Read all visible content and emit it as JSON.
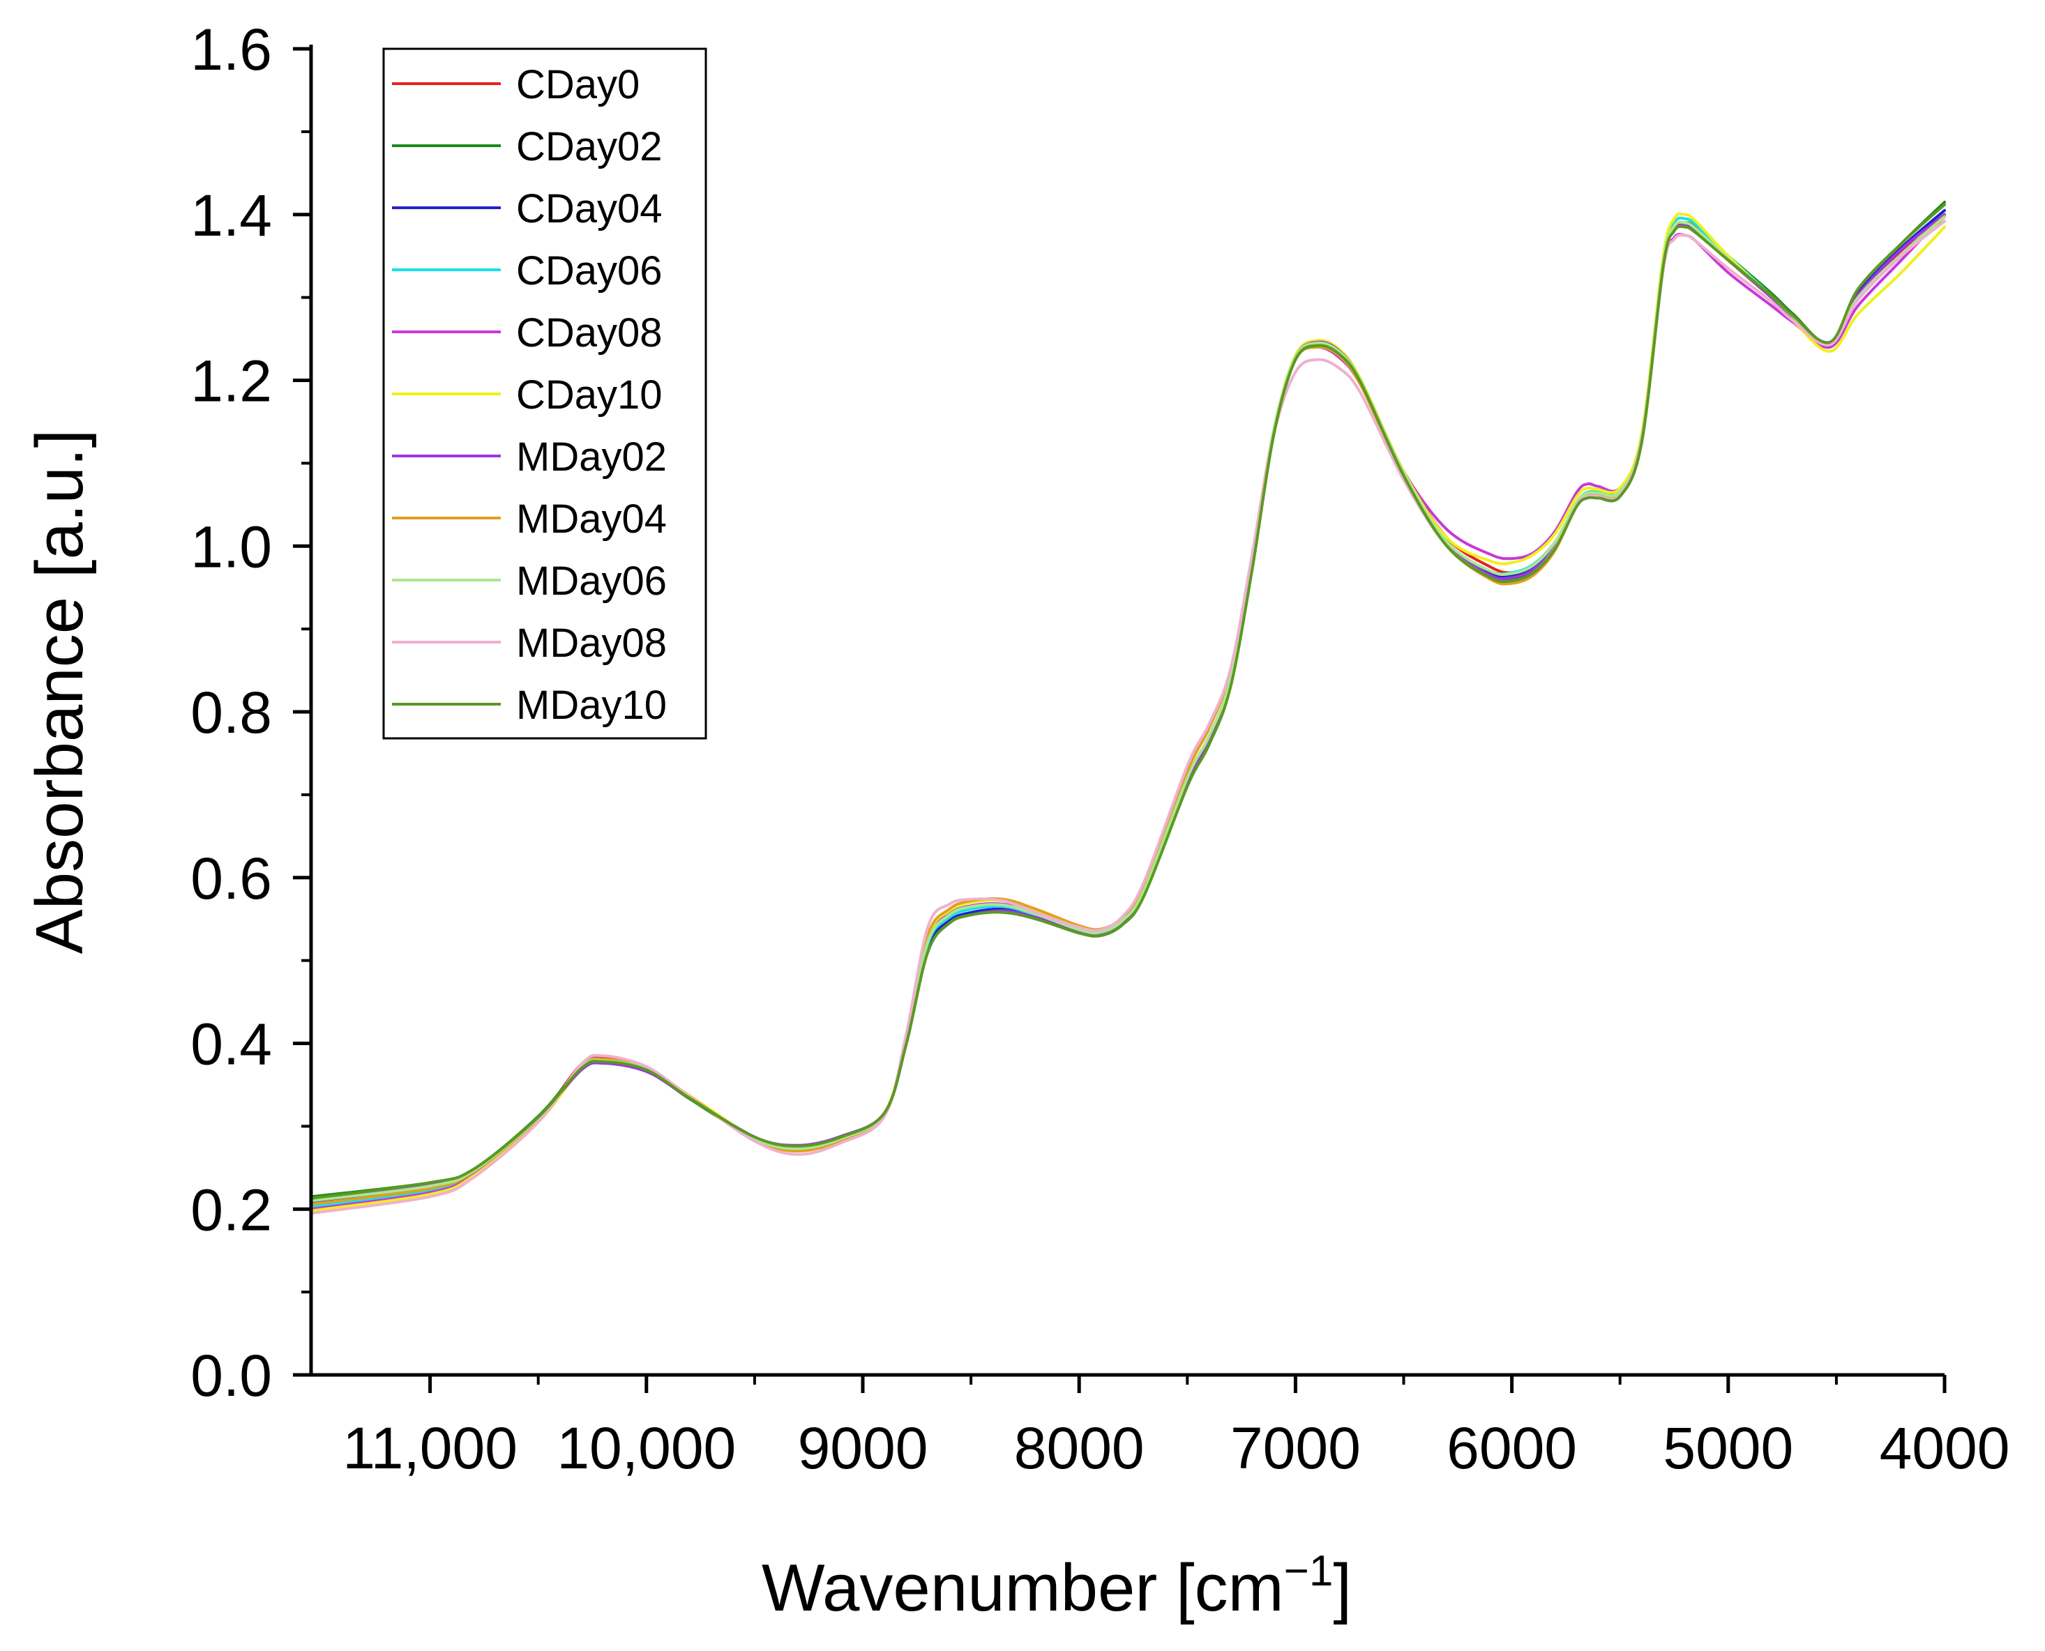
{
  "chart_data": {
    "type": "line",
    "title": "",
    "xlabel_text": "Wavenumber [cm",
    "xlabel_sup": "−1",
    "xlabel_close": "]",
    "ylabel": "Absorbance [a.u.]",
    "xlim": [
      11550,
      4000
    ],
    "ylim": [
      0.0,
      1.6
    ],
    "x_reversed": true,
    "xticks": [
      11000,
      10000,
      9000,
      8000,
      7000,
      6000,
      5000,
      4000
    ],
    "xtick_labels": [
      "11,000",
      "10,000",
      "9000",
      "8000",
      "7000",
      "6000",
      "5000",
      "4000"
    ],
    "x_minor_ticks": [
      10500,
      9500,
      8500,
      7500,
      6500,
      5500,
      4500
    ],
    "yticks": [
      0.0,
      0.2,
      0.4,
      0.6,
      0.8,
      1.0,
      1.2,
      1.4,
      1.6
    ],
    "ytick_labels": [
      "0.0",
      "0.2",
      "0.4",
      "0.6",
      "0.8",
      "1.0",
      "1.2",
      "1.4",
      "1.6"
    ],
    "y_minor_ticks": [
      0.1,
      0.3,
      0.5,
      0.7,
      0.9,
      1.1,
      1.3,
      1.5
    ],
    "grid": false,
    "legend_position": "top-left",
    "x": [
      11550,
      11000,
      10800,
      10500,
      10300,
      10200,
      10000,
      9800,
      9500,
      9300,
      9100,
      8900,
      8800,
      8700,
      8600,
      8500,
      8350,
      8200,
      8000,
      7900,
      7800,
      7700,
      7500,
      7400,
      7300,
      7200,
      7100,
      7000,
      6900,
      6800,
      6700,
      6500,
      6300,
      6100,
      6000,
      5900,
      5800,
      5700,
      5650,
      5600,
      5500,
      5400,
      5300,
      5250,
      5200,
      5150,
      5000,
      4800,
      4700,
      4530,
      4400,
      4200,
      4000
    ],
    "series": [
      {
        "name": "CDay0",
        "color": "#e8221f",
        "values": [
          0.205,
          0.224,
          0.245,
          0.31,
          0.375,
          0.382,
          0.37,
          0.335,
          0.285,
          0.272,
          0.285,
          0.315,
          0.4,
          0.52,
          0.555,
          0.565,
          0.565,
          0.555,
          0.538,
          0.535,
          0.548,
          0.585,
          0.72,
          0.77,
          0.84,
          0.98,
          1.14,
          1.228,
          1.245,
          1.235,
          1.2,
          1.09,
          1.01,
          0.975,
          0.968,
          0.978,
          1.005,
          1.05,
          1.062,
          1.065,
          1.068,
          1.13,
          1.34,
          1.385,
          1.39,
          1.382,
          1.345,
          1.3,
          1.275,
          1.245,
          1.3,
          1.355,
          1.392
        ]
      },
      {
        "name": "CDay02",
        "color": "#1b8a1b",
        "values": [
          0.215,
          0.232,
          0.248,
          0.312,
          0.372,
          0.379,
          0.368,
          0.333,
          0.286,
          0.276,
          0.287,
          0.316,
          0.398,
          0.51,
          0.545,
          0.555,
          0.56,
          0.552,
          0.535,
          0.532,
          0.545,
          0.58,
          0.712,
          0.762,
          0.832,
          0.975,
          1.135,
          1.225,
          1.243,
          1.233,
          1.198,
          1.085,
          1.0,
          0.963,
          0.96,
          0.97,
          0.998,
          1.05,
          1.06,
          1.058,
          1.06,
          1.125,
          1.34,
          1.385,
          1.39,
          1.385,
          1.35,
          1.305,
          1.28,
          1.245,
          1.31,
          1.365,
          1.415
        ]
      },
      {
        "name": "CDay04",
        "color": "#2222cc",
        "values": [
          0.208,
          0.228,
          0.246,
          0.31,
          0.37,
          0.378,
          0.368,
          0.335,
          0.287,
          0.275,
          0.286,
          0.315,
          0.4,
          0.515,
          0.548,
          0.558,
          0.562,
          0.553,
          0.536,
          0.533,
          0.546,
          0.582,
          0.715,
          0.765,
          0.835,
          0.978,
          1.138,
          1.228,
          1.246,
          1.236,
          1.2,
          1.088,
          1.005,
          0.968,
          0.965,
          0.975,
          1.003,
          1.052,
          1.063,
          1.063,
          1.065,
          1.128,
          1.338,
          1.382,
          1.388,
          1.38,
          1.345,
          1.3,
          1.276,
          1.245,
          1.305,
          1.36,
          1.405
        ]
      },
      {
        "name": "CDay06",
        "color": "#19e0e8",
        "values": [
          0.203,
          0.222,
          0.243,
          0.308,
          0.372,
          0.38,
          0.37,
          0.336,
          0.286,
          0.274,
          0.286,
          0.315,
          0.402,
          0.52,
          0.552,
          0.562,
          0.565,
          0.555,
          0.537,
          0.534,
          0.547,
          0.584,
          0.718,
          0.768,
          0.838,
          0.98,
          1.14,
          1.228,
          1.246,
          1.236,
          1.2,
          1.088,
          1.004,
          0.97,
          0.968,
          0.978,
          1.005,
          1.053,
          1.065,
          1.065,
          1.066,
          1.13,
          1.345,
          1.39,
          1.395,
          1.388,
          1.35,
          1.302,
          1.277,
          1.243,
          1.3,
          1.35,
          1.398
        ]
      },
      {
        "name": "CDay08",
        "color": "#c838d8",
        "values": [
          0.2,
          0.22,
          0.242,
          0.308,
          0.373,
          0.381,
          0.37,
          0.336,
          0.285,
          0.272,
          0.285,
          0.315,
          0.403,
          0.525,
          0.556,
          0.566,
          0.568,
          0.557,
          0.538,
          0.535,
          0.548,
          0.585,
          0.72,
          0.77,
          0.84,
          0.982,
          1.14,
          1.225,
          1.24,
          1.228,
          1.195,
          1.09,
          1.02,
          0.99,
          0.985,
          0.992,
          1.018,
          1.065,
          1.075,
          1.072,
          1.07,
          1.128,
          1.335,
          1.372,
          1.375,
          1.368,
          1.33,
          1.29,
          1.27,
          1.24,
          1.29,
          1.345,
          1.4
        ]
      },
      {
        "name": "CDay10",
        "color": "#f0f018",
        "values": [
          0.198,
          0.218,
          0.24,
          0.305,
          0.37,
          0.38,
          0.37,
          0.337,
          0.286,
          0.272,
          0.285,
          0.316,
          0.405,
          0.528,
          0.56,
          0.57,
          0.572,
          0.56,
          0.54,
          0.536,
          0.549,
          0.586,
          0.72,
          0.77,
          0.84,
          0.98,
          1.14,
          1.23,
          1.248,
          1.238,
          1.202,
          1.09,
          1.01,
          0.982,
          0.98,
          0.99,
          1.015,
          1.06,
          1.07,
          1.068,
          1.07,
          1.135,
          1.35,
          1.395,
          1.4,
          1.392,
          1.35,
          1.3,
          1.272,
          1.235,
          1.28,
          1.33,
          1.385
        ]
      },
      {
        "name": "MDay02",
        "color": "#9a38e0",
        "values": [
          0.212,
          0.23,
          0.247,
          0.311,
          0.368,
          0.376,
          0.366,
          0.334,
          0.287,
          0.277,
          0.288,
          0.316,
          0.398,
          0.51,
          0.545,
          0.555,
          0.56,
          0.552,
          0.535,
          0.532,
          0.546,
          0.582,
          0.715,
          0.765,
          0.835,
          0.978,
          1.138,
          1.228,
          1.246,
          1.236,
          1.2,
          1.088,
          1.003,
          0.965,
          0.962,
          0.972,
          1.0,
          1.05,
          1.06,
          1.06,
          1.063,
          1.128,
          1.338,
          1.382,
          1.388,
          1.38,
          1.345,
          1.3,
          1.276,
          1.246,
          1.303,
          1.358,
          1.4
        ]
      },
      {
        "name": "MDay04",
        "color": "#e0a020",
        "values": [
          0.206,
          0.225,
          0.245,
          0.309,
          0.372,
          0.381,
          0.37,
          0.336,
          0.284,
          0.27,
          0.283,
          0.313,
          0.405,
          0.53,
          0.562,
          0.572,
          0.574,
          0.562,
          0.542,
          0.538,
          0.552,
          0.59,
          0.728,
          0.78,
          0.85,
          0.99,
          1.14,
          1.225,
          1.24,
          1.23,
          1.195,
          1.085,
          1.0,
          0.96,
          0.955,
          0.965,
          0.995,
          1.05,
          1.062,
          1.062,
          1.065,
          1.13,
          1.342,
          1.385,
          1.39,
          1.383,
          1.345,
          1.302,
          1.277,
          1.243,
          1.3,
          1.352,
          1.398
        ]
      },
      {
        "name": "MDay06",
        "color": "#a8e890",
        "values": [
          0.21,
          0.228,
          0.246,
          0.31,
          0.371,
          0.379,
          0.369,
          0.335,
          0.285,
          0.273,
          0.285,
          0.315,
          0.402,
          0.522,
          0.555,
          0.565,
          0.567,
          0.556,
          0.537,
          0.534,
          0.548,
          0.585,
          0.72,
          0.77,
          0.84,
          0.982,
          1.14,
          1.228,
          1.245,
          1.235,
          1.2,
          1.088,
          1.005,
          0.97,
          0.967,
          0.977,
          1.005,
          1.053,
          1.064,
          1.064,
          1.066,
          1.13,
          1.343,
          1.386,
          1.39,
          1.383,
          1.347,
          1.302,
          1.277,
          1.244,
          1.3,
          1.352,
          1.397
        ]
      },
      {
        "name": "MDay08",
        "color": "#f0b0d0",
        "values": [
          0.195,
          0.215,
          0.238,
          0.305,
          0.375,
          0.385,
          0.372,
          0.336,
          0.282,
          0.266,
          0.28,
          0.312,
          0.41,
          0.54,
          0.568,
          0.574,
          0.572,
          0.558,
          0.54,
          0.537,
          0.553,
          0.595,
          0.735,
          0.785,
          0.852,
          0.99,
          1.135,
          1.21,
          1.225,
          1.215,
          1.185,
          1.08,
          1.0,
          0.962,
          0.958,
          0.968,
          0.998,
          1.05,
          1.06,
          1.06,
          1.062,
          1.128,
          1.335,
          1.37,
          1.375,
          1.368,
          1.335,
          1.295,
          1.272,
          1.243,
          1.297,
          1.35,
          1.392
        ]
      },
      {
        "name": "MDay10",
        "color": "#5a9a20",
        "values": [
          0.213,
          0.232,
          0.248,
          0.311,
          0.37,
          0.378,
          0.368,
          0.334,
          0.287,
          0.276,
          0.287,
          0.316,
          0.398,
          0.51,
          0.545,
          0.555,
          0.558,
          0.55,
          0.533,
          0.53,
          0.543,
          0.578,
          0.71,
          0.76,
          0.83,
          0.972,
          1.135,
          1.225,
          1.242,
          1.232,
          1.198,
          1.085,
          1.0,
          0.962,
          0.958,
          0.968,
          0.997,
          1.048,
          1.058,
          1.058,
          1.06,
          1.125,
          1.338,
          1.38,
          1.385,
          1.378,
          1.345,
          1.302,
          1.278,
          1.246,
          1.31,
          1.365,
          1.412
        ]
      }
    ]
  }
}
